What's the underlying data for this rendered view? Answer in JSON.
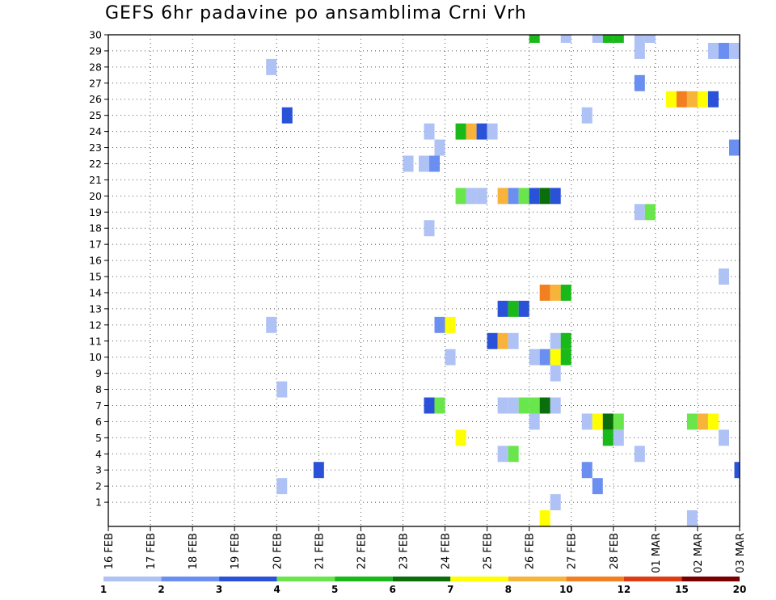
{
  "chart_data": {
    "type": "heatmap",
    "title": "GEFS 6hr padavine po ansamblima Crni Vrh",
    "xlabel": "",
    "ylabel": "",
    "x_tick_labels": [
      "16 FEB",
      "17 FEB",
      "18 FEB",
      "19 FEB",
      "20 FEB",
      "21 FEB",
      "22 FEB",
      "23 FEB",
      "24 FEB",
      "25 FEB",
      "26 FEB",
      "27 FEB",
      "28 FEB",
      "01 MAR",
      "02 MAR",
      "03 MAR"
    ],
    "y_tick_labels": [
      "1",
      "2",
      "3",
      "4",
      "5",
      "6",
      "7",
      "8",
      "9",
      "10",
      "11",
      "12",
      "13",
      "14",
      "15",
      "16",
      "17",
      "18",
      "19",
      "20",
      "21",
      "22",
      "23",
      "24",
      "25",
      "26",
      "27",
      "28",
      "29",
      "30"
    ],
    "x_unit": "6-hour step since 16 FEB 00Z (0 to 60)",
    "y_unit": "ensemble member",
    "ylim": [
      0,
      30
    ],
    "grid": true,
    "colorbar_labels": [
      "1",
      "2",
      "3",
      "4",
      "5",
      "6",
      "7",
      "8",
      "10",
      "12",
      "15",
      "20"
    ],
    "colorbar_colors": [
      "#afc2f5",
      "#6b8ff0",
      "#2a52d8",
      "#6ae64d",
      "#19b919",
      "#0a6e0a",
      "#ffff00",
      "#f8b43a",
      "#f28020",
      "#e03c14",
      "#7a0000"
    ],
    "cells": [
      {
        "x": 15.5,
        "y": 28,
        "v": 1
      },
      {
        "x": 17,
        "y": 25,
        "v": 3
      },
      {
        "x": 16.5,
        "y": 8,
        "v": 1
      },
      {
        "x": 16.5,
        "y": 2,
        "v": 1
      },
      {
        "x": 15.5,
        "y": 12,
        "v": 1
      },
      {
        "x": 20,
        "y": 3,
        "v": 3
      },
      {
        "x": 28.5,
        "y": 22,
        "v": 1
      },
      {
        "x": 30,
        "y": 22,
        "v": 1
      },
      {
        "x": 31,
        "y": 22,
        "v": 2
      },
      {
        "x": 31.5,
        "y": 23,
        "v": 1
      },
      {
        "x": 30.5,
        "y": 24,
        "v": 1
      },
      {
        "x": 30.5,
        "y": 18,
        "v": 1
      },
      {
        "x": 30.5,
        "y": 7,
        "v": 3
      },
      {
        "x": 31.5,
        "y": 7,
        "v": 4
      },
      {
        "x": 31.5,
        "y": 12,
        "v": 2
      },
      {
        "x": 32.5,
        "y": 12,
        "v": 7
      },
      {
        "x": 32.5,
        "y": 10,
        "v": 1
      },
      {
        "x": 33.5,
        "y": 24,
        "v": 5
      },
      {
        "x": 34.5,
        "y": 24,
        "v": 8
      },
      {
        "x": 35.5,
        "y": 24,
        "v": 3
      },
      {
        "x": 36.5,
        "y": 24,
        "v": 1
      },
      {
        "x": 33.5,
        "y": 20,
        "v": 4
      },
      {
        "x": 34.5,
        "y": 20,
        "v": 1
      },
      {
        "x": 35.5,
        "y": 20,
        "v": 1
      },
      {
        "x": 37.5,
        "y": 20,
        "v": 8
      },
      {
        "x": 38.5,
        "y": 20,
        "v": 2
      },
      {
        "x": 39.5,
        "y": 20,
        "v": 4
      },
      {
        "x": 40.5,
        "y": 20,
        "v": 3
      },
      {
        "x": 41.5,
        "y": 20,
        "v": 6
      },
      {
        "x": 42.5,
        "y": 20,
        "v": 3
      },
      {
        "x": 33.5,
        "y": 5,
        "v": 7
      },
      {
        "x": 37.5,
        "y": 13,
        "v": 3
      },
      {
        "x": 38.5,
        "y": 13,
        "v": 5
      },
      {
        "x": 39.5,
        "y": 13,
        "v": 3
      },
      {
        "x": 36.5,
        "y": 11,
        "v": 3
      },
      {
        "x": 37.5,
        "y": 11,
        "v": 9
      },
      {
        "x": 38.5,
        "y": 11,
        "v": 1
      },
      {
        "x": 37.5,
        "y": 7,
        "v": 1
      },
      {
        "x": 38.5,
        "y": 7,
        "v": 1
      },
      {
        "x": 39.5,
        "y": 7,
        "v": 4
      },
      {
        "x": 40.5,
        "y": 7,
        "v": 4
      },
      {
        "x": 41.5,
        "y": 7,
        "v": 6
      },
      {
        "x": 42.5,
        "y": 7,
        "v": 1
      },
      {
        "x": 37.5,
        "y": 4,
        "v": 1
      },
      {
        "x": 38.5,
        "y": 4,
        "v": 4
      },
      {
        "x": 41.5,
        "y": 14,
        "v": 11
      },
      {
        "x": 42.5,
        "y": 14,
        "v": 8
      },
      {
        "x": 43.5,
        "y": 14,
        "v": 5
      },
      {
        "x": 42.5,
        "y": 11,
        "v": 1
      },
      {
        "x": 43.5,
        "y": 11,
        "v": 5
      },
      {
        "x": 40.5,
        "y": 10,
        "v": 1
      },
      {
        "x": 41.5,
        "y": 10,
        "v": 2
      },
      {
        "x": 42.5,
        "y": 10,
        "v": 7
      },
      {
        "x": 43.5,
        "y": 10,
        "v": 5
      },
      {
        "x": 42.5,
        "y": 9,
        "v": 1
      },
      {
        "x": 40.5,
        "y": 6,
        "v": 1
      },
      {
        "x": 42.5,
        "y": 1,
        "v": 1
      },
      {
        "x": 41.5,
        "y": 0,
        "v": 7
      },
      {
        "x": 40.5,
        "y": 30,
        "v": 5
      },
      {
        "x": 43.5,
        "y": 30,
        "v": 1
      },
      {
        "x": 46.5,
        "y": 30,
        "v": 1
      },
      {
        "x": 47.5,
        "y": 30,
        "v": 5
      },
      {
        "x": 48.5,
        "y": 30,
        "v": 5
      },
      {
        "x": 50.5,
        "y": 30,
        "v": 1
      },
      {
        "x": 51.5,
        "y": 30,
        "v": 1
      },
      {
        "x": 50.5,
        "y": 29,
        "v": 1
      },
      {
        "x": 57.5,
        "y": 29,
        "v": 1
      },
      {
        "x": 58.5,
        "y": 29,
        "v": 2
      },
      {
        "x": 59.5,
        "y": 29,
        "v": 1
      },
      {
        "x": 50.5,
        "y": 27,
        "v": 2
      },
      {
        "x": 53.5,
        "y": 26,
        "v": 7
      },
      {
        "x": 54.5,
        "y": 26,
        "v": 10
      },
      {
        "x": 55.5,
        "y": 26,
        "v": 9
      },
      {
        "x": 56.5,
        "y": 26,
        "v": 7
      },
      {
        "x": 57.5,
        "y": 26,
        "v": 3
      },
      {
        "x": 45.5,
        "y": 25,
        "v": 1
      },
      {
        "x": 59.5,
        "y": 23,
        "v": 2
      },
      {
        "x": 50.5,
        "y": 19,
        "v": 1
      },
      {
        "x": 51.5,
        "y": 19,
        "v": 4
      },
      {
        "x": 58.5,
        "y": 15,
        "v": 1
      },
      {
        "x": 45.5,
        "y": 6,
        "v": 1
      },
      {
        "x": 46.5,
        "y": 6,
        "v": 7
      },
      {
        "x": 47.5,
        "y": 6,
        "v": 6
      },
      {
        "x": 48.5,
        "y": 6,
        "v": 4
      },
      {
        "x": 47.5,
        "y": 5,
        "v": 5
      },
      {
        "x": 48.5,
        "y": 5,
        "v": 1
      },
      {
        "x": 55.5,
        "y": 6,
        "v": 4
      },
      {
        "x": 56.5,
        "y": 6,
        "v": 8
      },
      {
        "x": 57.5,
        "y": 6,
        "v": 7
      },
      {
        "x": 58.5,
        "y": 5,
        "v": 1
      },
      {
        "x": 50.5,
        "y": 4,
        "v": 1
      },
      {
        "x": 45.5,
        "y": 3,
        "v": 2
      },
      {
        "x": 46.5,
        "y": 2,
        "v": 2
      },
      {
        "x": 60,
        "y": 3,
        "v": 3
      },
      {
        "x": 55.5,
        "y": 0,
        "v": 1
      }
    ]
  }
}
